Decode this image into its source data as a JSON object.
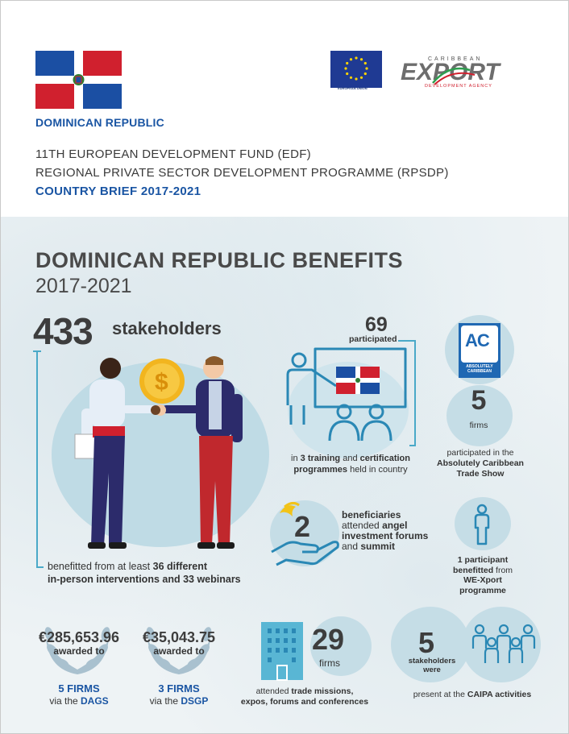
{
  "header": {
    "country": "DOMINICAN REPUBLIC",
    "eu_caption": "EUROPEAN UNION",
    "logo_top": "CARIBBEAN",
    "logo_main": "EXPORT",
    "logo_bottom": "DEVELOPMENT AGENCY",
    "title_line1": "11TH EUROPEAN DEVELOPMENT FUND (EDF)",
    "title_line2": "REGIONAL PRIVATE SECTOR DEVELOPMENT PROGRAMME (RPSDP)",
    "title_line3": "COUNTRY BRIEF 2017-2021"
  },
  "benefits": {
    "title": "DOMINICAN REPUBLIC BENEFITS",
    "years": "2017-2021"
  },
  "stakeholders": {
    "number": "433",
    "label": "stakeholders",
    "text_pre": "benefitted from at least ",
    "text_b1": "36 different",
    "text_b2": "in-person interventions and 33 webinars"
  },
  "training": {
    "number": "69",
    "label": "participated",
    "text_pre": "in ",
    "text_b1": "3 training",
    "text_mid": " and ",
    "text_b2": "certification programmes",
    "text_post": " held in country"
  },
  "absolutely_caribbean": {
    "logo_letters": "AC",
    "logo_sub1": "ABSOLUTELY",
    "logo_sub2": "CARIBBEAN",
    "number": "5",
    "unit": "firms",
    "text_pre": "participated in the",
    "text_b": "Absolutely Caribbean Trade Show"
  },
  "angel": {
    "number": "2",
    "b1": "beneficiaries",
    "t1": "attended",
    "b2": "angel investment forums",
    "t2": "and",
    "b3": "summit"
  },
  "we_xport": {
    "b1": "1 participant benefitted",
    "t1": " from",
    "b2": "WE-Xport programme"
  },
  "dags": {
    "amount": "€285,653.96",
    "awarded": "awarded to",
    "firms": "5 FIRMS",
    "via": "via the ",
    "program": "DAGS"
  },
  "dsgp": {
    "amount": "€35,043.75",
    "awarded": "awarded to",
    "firms": "3 FIRMS",
    "via": "via the ",
    "program": "DSGP"
  },
  "missions": {
    "number": "29",
    "unit": "firms",
    "text_pre": "attended ",
    "text_b1": "trade missions,",
    "text_b2": "expos, forums and conferences"
  },
  "caipa": {
    "number": "5",
    "label": "stakeholders were",
    "text_pre": "present at the ",
    "text_b": "CAIPA activities"
  },
  "colors": {
    "accent_blue": "#1a55a3",
    "teal_line": "#4aa9c8",
    "circle": "#c5dde6",
    "dr_red": "#d0202e",
    "dr_blue": "#1b4fa3"
  }
}
